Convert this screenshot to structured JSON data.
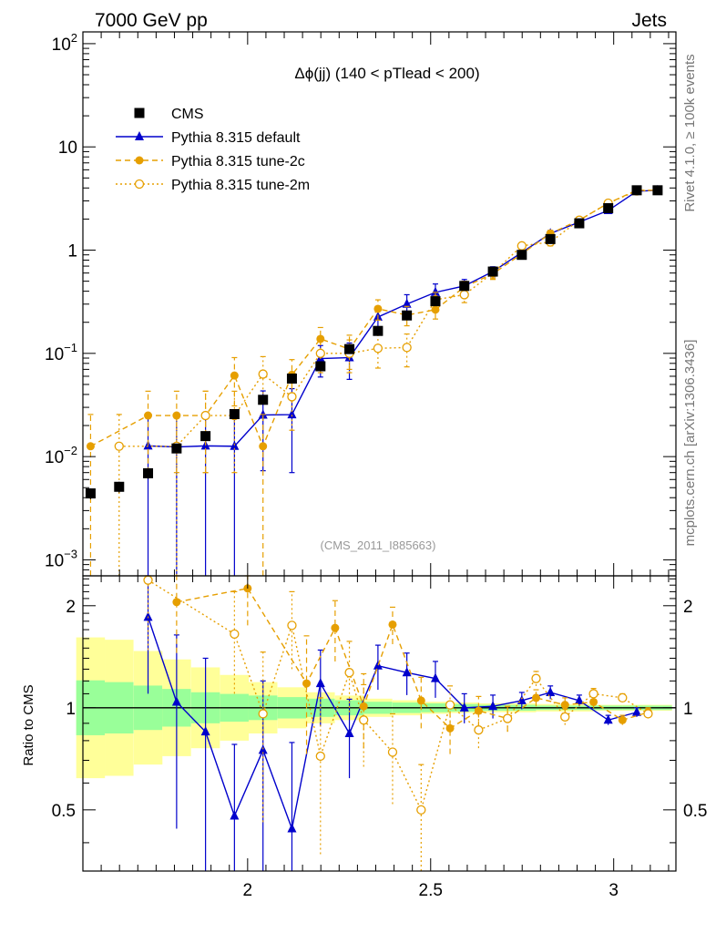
{
  "header": {
    "left_label": "7000 GeV pp",
    "right_label": "Jets"
  },
  "side": {
    "top_label": "Rivet 4.1.0, ≥ 100k events",
    "bottom_label": "mcplots.cern.ch [arXiv:1306.3436]"
  },
  "chart_data": {
    "type": "scatter",
    "title": "Δϕ(jj) (140 < pTlead <  200)",
    "watermark": "(CMS_2011_I885663)",
    "xlim": [
      1.55,
      3.17
    ],
    "x_ticks": [
      2,
      2.5,
      3
    ],
    "x_tick_labels": [
      "2",
      "2.5",
      "3"
    ],
    "main": {
      "yscale": "log",
      "ylim": [
        0.0007,
        130
      ],
      "y_ticks": [
        0.001,
        0.01,
        0.1,
        1,
        10,
        100
      ],
      "y_tick_labels": [
        {
          "base": "10",
          "exp": "−3"
        },
        {
          "base": "10",
          "exp": "−2"
        },
        {
          "base": "10",
          "exp": "−1"
        },
        {
          "base": "1",
          "exp": ""
        },
        {
          "base": "10",
          "exp": ""
        },
        {
          "base": "10",
          "exp": "2"
        }
      ]
    },
    "ratio": {
      "ylabel": "Ratio to CMS",
      "yscale": "log",
      "ylim": [
        0.33,
        2.45
      ],
      "y_ticks": [
        0.5,
        1,
        2
      ],
      "y_tick_labels": [
        "0.5",
        "1",
        "2"
      ],
      "band_outer": [
        0.62,
        0.63,
        0.68,
        0.72,
        0.76,
        0.8,
        0.84,
        0.87,
        0.9,
        0.92,
        0.94,
        0.95,
        0.96,
        0.965,
        0.97,
        0.97,
        0.975,
        0.975,
        0.98,
        0.98,
        0.98,
        0.98,
        0.98,
        0.98,
        0.98
      ],
      "band_inner": [
        0.83,
        0.84,
        0.86,
        0.88,
        0.9,
        0.91,
        0.92,
        0.93,
        0.94,
        0.95,
        0.96,
        0.965,
        0.97,
        0.975,
        0.98,
        0.98,
        0.985,
        0.985,
        0.985,
        0.985,
        0.985,
        0.985,
        0.985,
        0.985,
        0.985
      ]
    },
    "series": [
      {
        "name": "CMS",
        "role": "data",
        "color": "#000000",
        "x": [
          1.571,
          1.649,
          1.728,
          1.806,
          1.885,
          1.964,
          2.042,
          2.121,
          2.199,
          2.278,
          2.356,
          2.435,
          2.513,
          2.592,
          2.67,
          2.749,
          2.827,
          2.906,
          2.985,
          3.063,
          3.12
        ],
        "y": [
          0.0044,
          0.0051,
          0.0069,
          0.012,
          0.0158,
          0.0258,
          0.0355,
          0.057,
          0.075,
          0.11,
          0.165,
          0.233,
          0.32,
          0.45,
          0.62,
          0.9,
          1.28,
          1.82,
          2.55,
          3.8,
          3.8
        ],
        "yerr_rel": [
          0.12,
          0.12,
          0.12,
          0.1,
          0.1,
          0.1,
          0.1,
          0.1,
          0.1,
          0.1,
          0.1,
          0.08,
          0.08,
          0.06,
          0.06,
          0.05,
          0.05,
          0.04,
          0.04,
          0.03,
          0.03
        ]
      },
      {
        "name": "Pythia 8.315 default",
        "role": "mc",
        "color": "#0000cc",
        "style": "solid",
        "marker": "triangle",
        "x": [
          1.728,
          1.806,
          1.885,
          1.964,
          2.042,
          2.121,
          2.199,
          2.278,
          2.356,
          2.435,
          2.513,
          2.592,
          2.67,
          2.749,
          2.827,
          2.906,
          2.985,
          3.063,
          3.12
        ],
        "y": [
          0.0127,
          0.0124,
          0.0127,
          0.0126,
          0.0253,
          0.0255,
          0.089,
          0.091,
          0.225,
          0.3,
          0.39,
          0.45,
          0.62,
          0.95,
          1.45,
          1.87,
          2.42,
          3.72,
          3.8
        ],
        "yerr_lo": [
          0.0126,
          0.0123,
          0.0126,
          0.0125,
          0.018,
          0.0185,
          0.03,
          0.035,
          0.06,
          0.07,
          0.08,
          0.07,
          0.07,
          0.08,
          0.1,
          0.1,
          0.12,
          0.15,
          0.15
        ],
        "yerr_hi": [
          0.013,
          0.013,
          0.013,
          0.013,
          0.018,
          0.02,
          0.03,
          0.035,
          0.06,
          0.07,
          0.08,
          0.07,
          0.07,
          0.08,
          0.1,
          0.1,
          0.12,
          0.15,
          0.15
        ],
        "ratio": [
          1.85,
          1.04,
          0.85,
          0.48,
          0.75,
          0.44,
          1.18,
          0.84,
          1.33,
          1.27,
          1.22,
          1.0,
          1.01,
          1.05,
          1.11,
          1.05,
          0.92,
          0.97
        ],
        "ratio_err": [
          0.75,
          0.6,
          0.55,
          0.3,
          0.45,
          0.35,
          0.3,
          0.22,
          0.2,
          0.18,
          0.15,
          0.1,
          0.08,
          0.06,
          0.05,
          0.04,
          0.03,
          0.03
        ]
      },
      {
        "name": "Pythia 8.315 tune-2c",
        "role": "mc",
        "color": "#e69f00",
        "style": "dashed",
        "marker": "filled-circle",
        "x": [
          1.571,
          1.728,
          1.806,
          1.885,
          1.964,
          2.042,
          2.121,
          2.199,
          2.278,
          2.356,
          2.435,
          2.513,
          2.592,
          2.67,
          2.749,
          2.827,
          2.906,
          2.985,
          3.063,
          3.12
        ],
        "y": [
          0.0126,
          0.025,
          0.025,
          0.025,
          0.061,
          0.0126,
          0.062,
          0.138,
          0.11,
          0.27,
          0.235,
          0.265,
          0.44,
          0.59,
          0.92,
          1.45,
          1.95,
          2.85,
          3.8,
          3.8
        ],
        "yerr_lo": [
          0.012,
          0.018,
          0.018,
          0.018,
          0.03,
          0.012,
          0.025,
          0.04,
          0.04,
          0.06,
          0.05,
          0.05,
          0.06,
          0.07,
          0.08,
          0.1,
          0.1,
          0.12,
          0.15,
          0.15
        ],
        "yerr_hi": [
          0.013,
          0.018,
          0.018,
          0.018,
          0.03,
          0.013,
          0.025,
          0.04,
          0.04,
          0.06,
          0.05,
          0.05,
          0.06,
          0.07,
          0.08,
          0.1,
          0.1,
          0.12,
          0.15,
          0.15
        ],
        "ratio": [
          2.05,
          2.25,
          1.18,
          1.72,
          1.01,
          1.76,
          1.05,
          0.87,
          0.98,
          0.93,
          1.07,
          1.02,
          1.04,
          0.92,
          0.97
        ],
        "ratio_x": [
          1.806,
          2.0,
          2.161,
          2.239,
          2.317,
          2.396,
          2.474,
          2.553,
          2.631,
          2.71,
          2.788,
          2.867,
          2.945,
          3.024,
          3.094
        ],
        "ratio_err": [
          0.6,
          0.5,
          0.45,
          0.35,
          0.25,
          0.22,
          0.18,
          0.14,
          0.1,
          0.08,
          0.06,
          0.05,
          0.04,
          0.03,
          0.03
        ]
      },
      {
        "name": "Pythia 8.315 tune-2m",
        "role": "mc",
        "color": "#e69f00",
        "style": "dotted",
        "marker": "open-circle",
        "x": [
          1.649,
          1.806,
          1.885,
          1.964,
          2.042,
          2.121,
          2.199,
          2.278,
          2.356,
          2.435,
          2.513,
          2.592,
          2.67,
          2.749,
          2.827,
          2.906,
          2.985,
          3.063,
          3.12
        ],
        "y": [
          0.0126,
          0.0126,
          0.025,
          0.025,
          0.063,
          0.038,
          0.1,
          0.1,
          0.112,
          0.114,
          0.33,
          0.37,
          0.6,
          1.1,
          1.2,
          1.95,
          2.85,
          3.75,
          3.8
        ],
        "yerr_lo": [
          0.012,
          0.012,
          0.018,
          0.018,
          0.03,
          0.02,
          0.035,
          0.035,
          0.04,
          0.04,
          0.06,
          0.06,
          0.07,
          0.08,
          0.1,
          0.1,
          0.12,
          0.15,
          0.15
        ],
        "yerr_hi": [
          0.013,
          0.013,
          0.018,
          0.018,
          0.03,
          0.02,
          0.035,
          0.035,
          0.04,
          0.04,
          0.06,
          0.06,
          0.07,
          0.08,
          0.1,
          0.1,
          0.12,
          0.15,
          0.15
        ],
        "ratio": [
          2.38,
          1.65,
          0.96,
          1.75,
          0.72,
          1.27,
          0.92,
          0.74,
          0.5,
          1.02,
          0.86,
          0.93,
          1.22,
          0.94,
          1.1,
          1.07,
          0.96
        ],
        "ratio_x": [
          1.728,
          1.964,
          2.042,
          2.121,
          2.199,
          2.278,
          2.317,
          2.396,
          2.474,
          2.553,
          2.631,
          2.71,
          2.788,
          2.867,
          2.945,
          3.024,
          3.094
        ],
        "ratio_err": [
          0.9,
          0.55,
          0.5,
          0.45,
          0.35,
          0.3,
          0.25,
          0.22,
          0.18,
          0.14,
          0.1,
          0.08,
          0.06,
          0.05,
          0.04,
          0.03,
          0.03
        ]
      }
    ]
  }
}
